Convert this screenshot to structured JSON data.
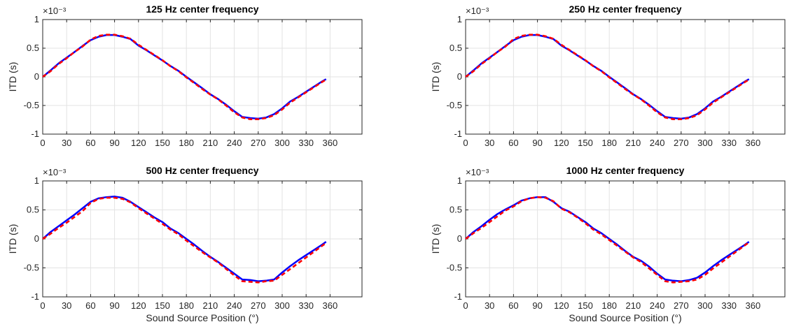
{
  "chart_data": [
    {
      "type": "line",
      "title": "125 Hz center frequency",
      "xlabel": "",
      "ylabel": "ITD (s)",
      "y_exponent_label": "×10⁻³",
      "xlim": [
        0,
        400
      ],
      "ylim": [
        -0.001,
        0.001
      ],
      "xticks": [
        "0",
        "30",
        "60",
        "90",
        "120",
        "150",
        "180",
        "210",
        "240",
        "270",
        "300",
        "330",
        "360"
      ],
      "yticks": [
        "1",
        "0.5",
        "0",
        "-0.5",
        "-1"
      ],
      "grid": true,
      "x": [
        0,
        10,
        20,
        30,
        40,
        50,
        60,
        70,
        80,
        90,
        100,
        110,
        120,
        130,
        140,
        150,
        160,
        170,
        180,
        190,
        200,
        210,
        220,
        230,
        240,
        250,
        260,
        270,
        280,
        290,
        300,
        310,
        320,
        330,
        340,
        350,
        355
      ],
      "series": [
        {
          "color": "#0000ff",
          "style": "solid",
          "values": [
            0.0,
            0.000115,
            0.000235,
            0.000335,
            0.000435,
            0.00054,
            0.00064,
            0.0007,
            0.00073,
            0.00073,
            0.0007,
            0.00066,
            0.000545,
            0.000465,
            0.000375,
            0.000285,
            0.00019,
            0.000105,
            0.0,
            -0.0001,
            -0.0002,
            -0.000305,
            -0.00039,
            -0.00049,
            -0.0006,
            -0.0007,
            -0.00072,
            -0.00073,
            -0.00071,
            -0.00065,
            -0.00055,
            -0.00043,
            -0.00035,
            -0.00026,
            -0.00017,
            -8e-05,
            -4e-05
          ]
        },
        {
          "color": "#ff0000",
          "style": "dashed",
          "values": [
            0.0,
            0.0001,
            0.000225,
            0.000325,
            0.000435,
            0.00053,
            0.00065,
            0.000715,
            0.000735,
            0.000735,
            0.00071,
            0.000665,
            0.00056,
            0.00047,
            0.00038,
            0.00029,
            0.000185,
            0.0001,
            -1e-05,
            -0.00011,
            -0.000215,
            -0.00031,
            -0.000395,
            -0.000505,
            -0.00062,
            -0.00071,
            -0.00074,
            -0.00074,
            -0.00072,
            -0.00067,
            -0.00057,
            -0.00045,
            -0.00036,
            -0.00027,
            -0.00018,
            -9e-05,
            -5e-05
          ]
        }
      ]
    },
    {
      "type": "line",
      "title": "250 Hz center frequency",
      "xlabel": "",
      "ylabel": "ITD (s)",
      "y_exponent_label": "×10⁻³",
      "xlim": [
        0,
        400
      ],
      "ylim": [
        -0.001,
        0.001
      ],
      "xticks": [
        "0",
        "30",
        "60",
        "90",
        "120",
        "150",
        "180",
        "210",
        "240",
        "270",
        "300",
        "330",
        "360"
      ],
      "yticks": [
        "1",
        "0.5",
        "0",
        "-0.5",
        "-1"
      ],
      "grid": true,
      "x": [
        0,
        10,
        20,
        30,
        40,
        50,
        60,
        70,
        80,
        90,
        100,
        110,
        120,
        130,
        140,
        150,
        160,
        170,
        180,
        190,
        200,
        210,
        220,
        230,
        240,
        250,
        260,
        270,
        280,
        290,
        300,
        310,
        320,
        330,
        340,
        350,
        355
      ],
      "series": [
        {
          "color": "#0000ff",
          "style": "solid",
          "values": [
            0.0,
            0.000115,
            0.000235,
            0.000335,
            0.000435,
            0.00054,
            0.00064,
            0.0007,
            0.00073,
            0.00073,
            0.0007,
            0.00066,
            0.000545,
            0.000465,
            0.000375,
            0.000285,
            0.00019,
            0.000105,
            0.0,
            -0.0001,
            -0.0002,
            -0.000305,
            -0.00039,
            -0.00049,
            -0.0006,
            -0.0007,
            -0.00072,
            -0.00073,
            -0.00071,
            -0.00065,
            -0.00055,
            -0.00043,
            -0.00035,
            -0.00026,
            -0.00017,
            -8e-05,
            -4e-05
          ]
        },
        {
          "color": "#ff0000",
          "style": "dashed",
          "values": [
            0.0,
            0.0001,
            0.000225,
            0.000325,
            0.000435,
            0.00053,
            0.00066,
            0.000715,
            0.000735,
            0.000735,
            0.00071,
            0.000665,
            0.00056,
            0.00047,
            0.00038,
            0.00029,
            0.000185,
            0.0001,
            -1e-05,
            -0.00011,
            -0.000215,
            -0.00031,
            -0.000395,
            -0.000505,
            -0.00062,
            -0.00071,
            -0.00074,
            -0.00074,
            -0.00072,
            -0.00067,
            -0.00057,
            -0.00045,
            -0.00036,
            -0.00027,
            -0.00018,
            -9e-05,
            -5e-05
          ]
        }
      ]
    },
    {
      "type": "line",
      "title": "500 Hz center frequency",
      "xlabel": "Sound Source Position (°)",
      "ylabel": "ITD (s)",
      "y_exponent_label": "×10⁻³",
      "xlim": [
        0,
        400
      ],
      "ylim": [
        -0.001,
        0.001
      ],
      "xticks": [
        "0",
        "30",
        "60",
        "90",
        "120",
        "150",
        "180",
        "210",
        "240",
        "270",
        "300",
        "330",
        "360"
      ],
      "yticks": [
        "1",
        "0.5",
        "0",
        "-0.5",
        "-1"
      ],
      "grid": true,
      "x": [
        0,
        10,
        20,
        30,
        40,
        50,
        60,
        70,
        80,
        90,
        100,
        110,
        120,
        130,
        140,
        150,
        160,
        170,
        180,
        190,
        200,
        210,
        220,
        230,
        240,
        250,
        260,
        270,
        280,
        290,
        300,
        310,
        320,
        330,
        340,
        350,
        355
      ],
      "series": [
        {
          "color": "#0000ff",
          "style": "solid",
          "values": [
            0.0,
            0.00012,
            0.00022,
            0.00032,
            0.00042,
            0.00053,
            0.00064,
            0.0007,
            0.00072,
            0.00073,
            0.00071,
            0.00064,
            0.00055,
            0.00046,
            0.00037,
            0.00029,
            0.00018,
            0.0001,
            0.0,
            -0.0001,
            -0.00021,
            -0.00031,
            -0.0004,
            -0.0005,
            -0.0006,
            -0.0007,
            -0.00071,
            -0.00073,
            -0.00072,
            -0.0007,
            -0.00058,
            -0.00047,
            -0.00037,
            -0.00028,
            -0.00019,
            -0.0001,
            -5e-05
          ]
        },
        {
          "color": "#ff0000",
          "style": "dashed",
          "values": [
            0.0,
            9e-05,
            0.00019,
            0.00028,
            0.00038,
            0.00048,
            0.00062,
            0.00069,
            0.00071,
            0.00071,
            0.00069,
            0.00063,
            0.00053,
            0.00044,
            0.00035,
            0.00026,
            0.00016,
            8e-05,
            -3e-05,
            -0.00013,
            -0.00023,
            -0.00032,
            -0.00041,
            -0.00052,
            -0.00063,
            -0.00073,
            -0.00074,
            -0.00075,
            -0.00073,
            -0.00072,
            -0.00062,
            -0.00052,
            -0.00042,
            -0.00032,
            -0.00022,
            -0.00012,
            -7e-05
          ]
        }
      ]
    },
    {
      "type": "line",
      "title": "1000 Hz center frequency",
      "xlabel": "Sound Source Position (°)",
      "ylabel": "ITD (s)",
      "y_exponent_label": "×10⁻³",
      "xlim": [
        0,
        400
      ],
      "ylim": [
        -0.001,
        0.001
      ],
      "xticks": [
        "0",
        "30",
        "60",
        "90",
        "120",
        "150",
        "180",
        "210",
        "240",
        "270",
        "300",
        "330",
        "360"
      ],
      "yticks": [
        "1",
        "0.5",
        "0",
        "-0.5",
        "-1"
      ],
      "grid": true,
      "x": [
        0,
        10,
        20,
        30,
        40,
        50,
        60,
        70,
        80,
        90,
        100,
        110,
        120,
        130,
        140,
        150,
        160,
        170,
        180,
        190,
        200,
        210,
        220,
        230,
        240,
        250,
        260,
        270,
        280,
        290,
        300,
        310,
        320,
        330,
        340,
        350,
        355
      ],
      "series": [
        {
          "color": "#0000ff",
          "style": "solid",
          "values": [
            0.0,
            0.00012,
            0.00022,
            0.00033,
            0.00043,
            0.00051,
            0.00058,
            0.00066,
            0.0007,
            0.00072,
            0.00072,
            0.00064,
            0.00053,
            0.00047,
            0.00038,
            0.00029,
            0.00018,
            0.0001,
            0.0,
            -0.0001,
            -0.00021,
            -0.00031,
            -0.00038,
            -0.00048,
            -0.0006,
            -0.0007,
            -0.00072,
            -0.00073,
            -0.00071,
            -0.00067,
            -0.00058,
            -0.00047,
            -0.00037,
            -0.00028,
            -0.00019,
            -0.0001,
            -5e-05
          ]
        },
        {
          "color": "#ff0000",
          "style": "dashed",
          "values": [
            0.0,
            0.0001,
            0.00019,
            0.00029,
            0.00039,
            0.00049,
            0.00056,
            0.00065,
            0.0007,
            0.00072,
            0.00071,
            0.00065,
            0.00052,
            0.00046,
            0.00037,
            0.00027,
            0.00016,
            8e-05,
            -2e-05,
            -0.00012,
            -0.00022,
            -0.00032,
            -0.0004,
            -0.00051,
            -0.00062,
            -0.00073,
            -0.00075,
            -0.00074,
            -0.00073,
            -0.0007,
            -0.00062,
            -0.00051,
            -0.00041,
            -0.00031,
            -0.00021,
            -0.00011,
            -6e-05
          ]
        }
      ]
    }
  ]
}
